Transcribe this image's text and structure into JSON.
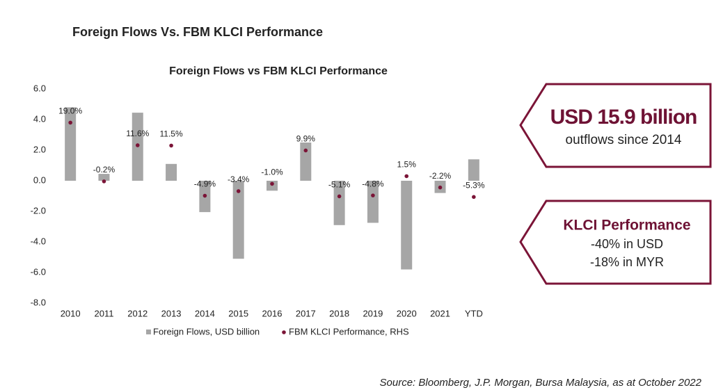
{
  "heading": "Foreign Flows Vs. FBM KLCI Performance",
  "chart_data": {
    "type": "bar_dot",
    "title": "Foreign Flows vs FBM KLCI Performance",
    "categories": [
      "2010",
      "2011",
      "2012",
      "2013",
      "2014",
      "2015",
      "2016",
      "2017",
      "2018",
      "2019",
      "2020",
      "2021",
      "YTD"
    ],
    "ylim": [
      -8,
      6
    ],
    "yticks": [
      {
        "value": 6,
        "label": "6.0"
      },
      {
        "value": 4,
        "label": "4.0"
      },
      {
        "value": 2,
        "label": "2.0"
      },
      {
        "value": 0,
        "label": "0.0"
      },
      {
        "value": -2,
        "label": "-2.0"
      },
      {
        "value": -4,
        "label": "-4.0"
      },
      {
        "value": -6,
        "label": "-6.0"
      },
      {
        "value": -8,
        "label": "-8.0"
      }
    ],
    "y2lim": [
      -40,
      30
    ],
    "series": [
      {
        "name": "Foreign Flows, USD billion",
        "color": "#a6a6a6",
        "kind": "bar",
        "values": [
          4.8,
          0.45,
          4.45,
          1.1,
          -2.05,
          -5.1,
          -0.65,
          2.5,
          -2.9,
          -2.75,
          -5.8,
          -0.8,
          1.4
        ]
      },
      {
        "name": "FBM KLCI Performance, RHS",
        "color": "#7b1437",
        "kind": "dot",
        "axis": "y2",
        "values": [
          19.0,
          -0.2,
          11.6,
          11.5,
          -4.9,
          -3.4,
          -1.0,
          9.9,
          -5.1,
          -4.8,
          1.5,
          -2.2,
          -5.3
        ],
        "value_labels": [
          "19.0%",
          "-0.2%",
          "11.6%",
          "11.5%",
          "-4.9%",
          "-3.4%",
          "-1.0%",
          "9.9%",
          "-5.1%",
          "-4.8%",
          "1.5%",
          "-2.2%",
          "-5.3%"
        ]
      }
    ]
  },
  "callouts": [
    {
      "headline": "USD 15.9 billion",
      "lines": [
        "outflows since 2014"
      ]
    },
    {
      "headline": "KLCI Performance",
      "lines": [
        "-40% in USD",
        "-18% in MYR"
      ]
    }
  ],
  "source": "Source: Bloomberg, J.P. Morgan, Bursa Malaysia, as at October 2022"
}
